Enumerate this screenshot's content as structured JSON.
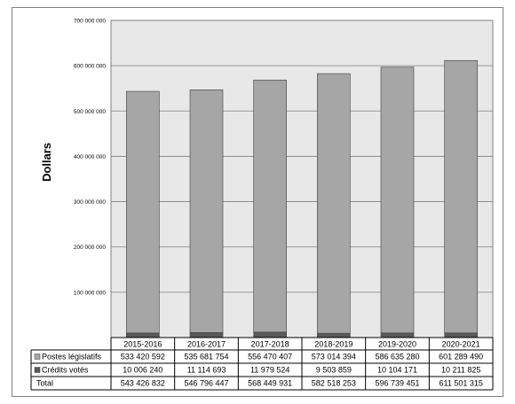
{
  "chart_data": {
    "type": "bar",
    "stacked": true,
    "ylabel": "Dollars",
    "ylim": [
      0,
      700000000
    ],
    "yticks": [
      100000000,
      200000000,
      300000000,
      400000000,
      500000000,
      600000000,
      700000000
    ],
    "ytick_labels": [
      "100 000 000",
      "200 000 000",
      "300 000 000",
      "400 000 000",
      "500 000 000",
      "600 000 000",
      "700 000 000"
    ],
    "grid": true,
    "legend": "table-below",
    "categories": [
      "2015-2016",
      "2016-2017",
      "2017-2018",
      "2018-2019",
      "2019-2020",
      "2020-2021"
    ],
    "series": [
      {
        "name": "Postes législatifs",
        "values": [
          533420592,
          535681754,
          556470407,
          573014394,
          586635280,
          601289490
        ],
        "labels": [
          "533 420 592",
          "535 681 754",
          "556 470 407",
          "573 014 394",
          "586 635 280",
          "601 289 490"
        ],
        "color": "#a6a6a6"
      },
      {
        "name": "Crédits votés",
        "values": [
          10006240,
          11114693,
          11979524,
          9503859,
          10104171,
          10211825
        ],
        "labels": [
          "10 006 240",
          "11 114 693",
          "11 979 524",
          "9 503 859",
          "10 104 171",
          "10 211 825"
        ],
        "color": "#595959"
      }
    ],
    "total": {
      "name": "Total",
      "values": [
        543426832,
        546796447,
        568449931,
        582518253,
        596739451,
        611501315
      ],
      "labels": [
        "543 426 832",
        "546 796 447",
        "568 449 931",
        "582 518 253",
        "596 739 451",
        "611 501 315"
      ]
    },
    "plot_background": "#e8e8e8",
    "gridline_color": "#808080"
  }
}
